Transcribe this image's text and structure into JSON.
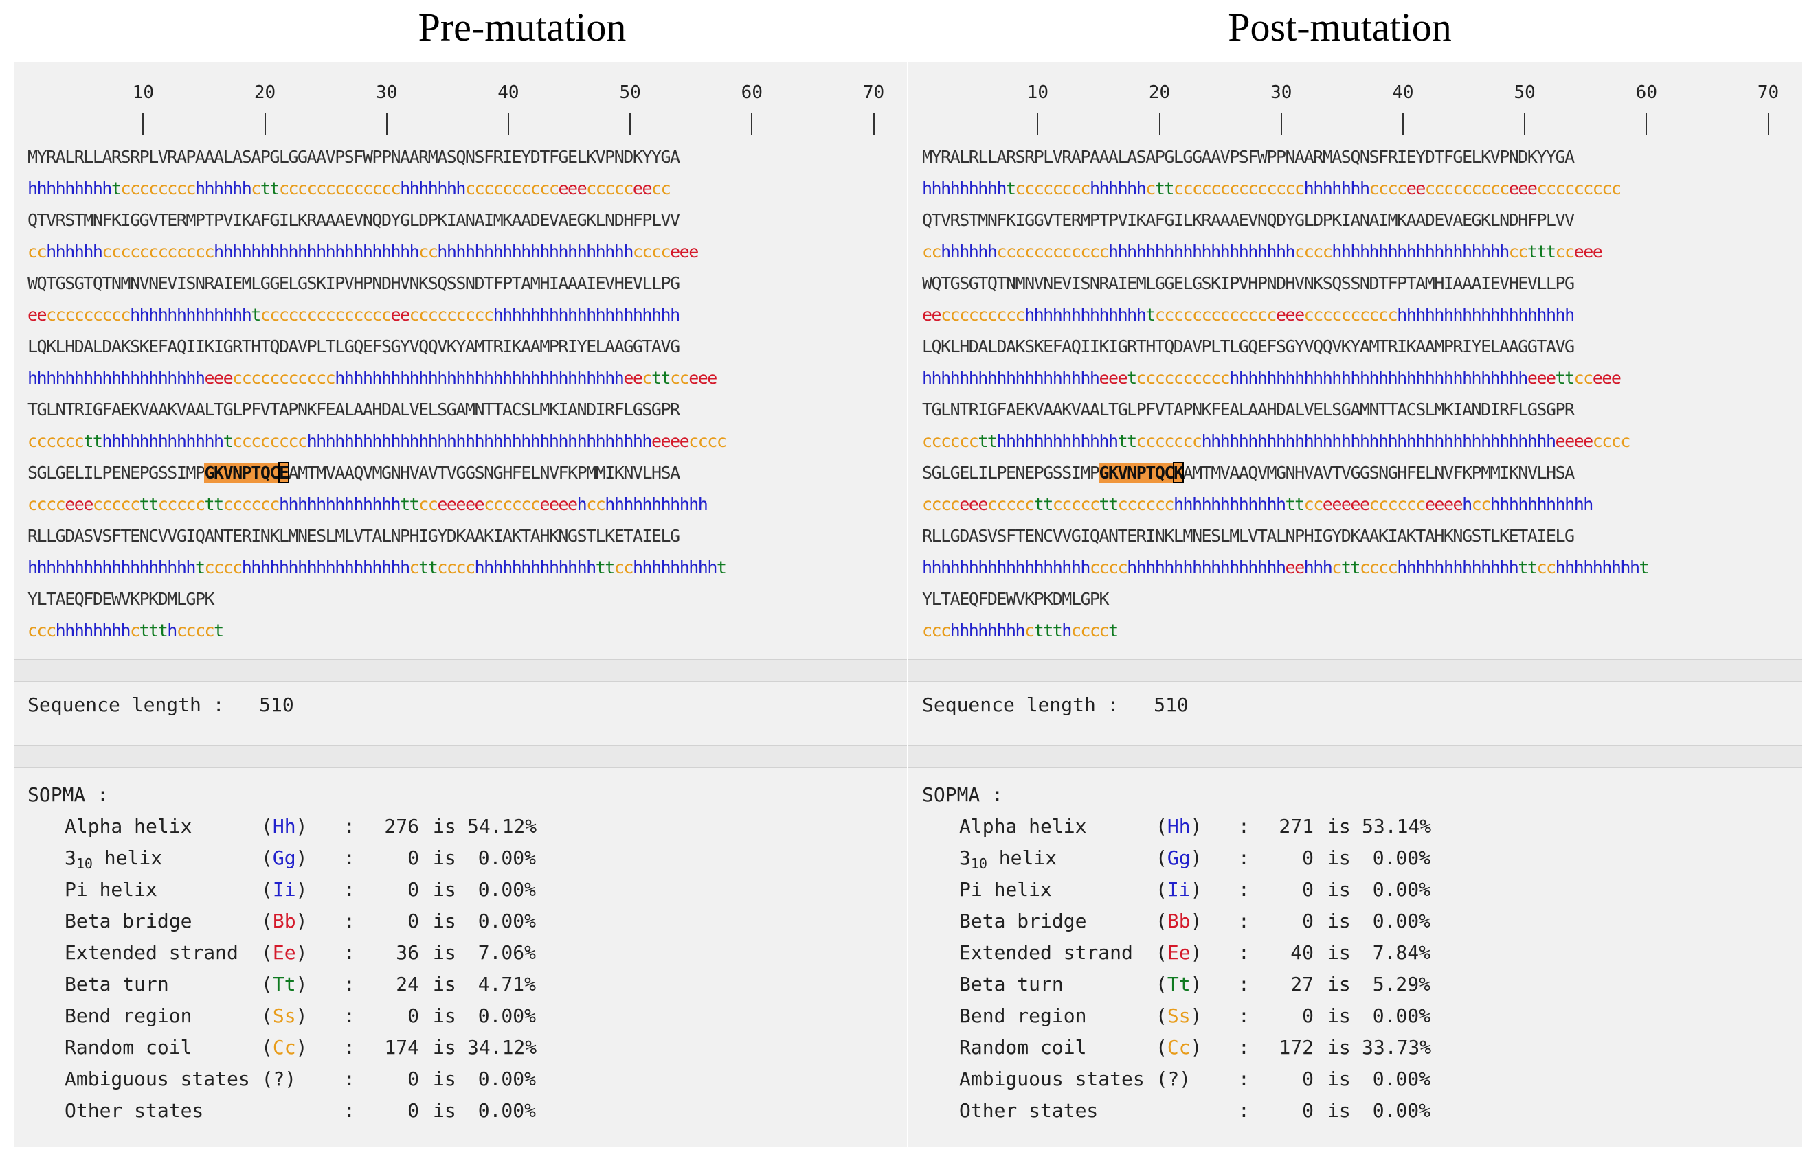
{
  "titles": {
    "pre": "Pre-mutation",
    "post": "Post-mutation"
  },
  "ruler_labels": [
    "10",
    "20",
    "30",
    "40",
    "50",
    "60",
    "70"
  ],
  "pre": {
    "lines": [
      {
        "aa": "MYRALRLLARSRPLVRAPAAALASAPGLGGAAVPSFWPPNAARMASQNSFRIEYDTFGELKVPNDKYYGA",
        "ss": "hhhhhhhhhtcccccccchhhhhhcttccccccccccccchhhhhhhcccccccccceeeccccceecc"
      },
      {
        "aa": "QTVRSTMNFKIGGVTERMPTPVIKAFGILKRAAAEVNQDYGLDPKIANAIMKAADEVAEGKLNDHFPLVV",
        "ss": "cchhhhhhcccccccccccchhhhhhhhhhhhhhhhhhhhhhcchhhhhhhhhhhhhhhhhhhhhcccceee"
      },
      {
        "aa": "WQTGSGTQTNMNVNEVISNRAIEMLGGELGSKIPVHPNDHVNKSQSSNDTFPTAMHIAAAIEVHEVLLPG",
        "ss": "eeccccccccchhhhhhhhhhhhhtcccccccccccccceeccccccccchhhhhhhhhhhhhhhhhhhh"
      },
      {
        "aa": "LQKLHDALDAKSKEFAQIIKIGRTHTQDAVPLTLGQEFSGYVQQVKYAMTRIKAAMPRIYELAAGGTAVG",
        "ss": "hhhhhhhhhhhhhhhhhhheeeccccccccccchhhhhhhhhhhhhhhhhhhhhhhhhhhhhhheecttcceee"
      },
      {
        "aa": "TGLNTRIGFAEKVAAKVAALTGLPFVTAPNKFEALAAHDALVELSGAMNTTACSLMKIANDIRFLGSGPR",
        "ss": "cccccctthhhhhhhhhhhhhtcccccccchhhhhhhhhhhhhhhhhhhhhhhhhhhhhhhhhhhhheeeecccc"
      },
      {
        "aa": "SGLGELILPENEPGSSIMPGKVNPTQCEAMTMVAAQVMGNHVAVTVGGSNGHFELNVFKPMMIKNVLHSA",
        "ss": "cccceeecccccttcccccttcccccchhhhhhhhhhhhhttcceeeeecccccceeeehcchhhhhhhhhhh",
        "hl_start": 19,
        "hl_end": 28,
        "box": 27
      },
      {
        "aa": "RLLGDASVSFTENCVVGIQANTERINKLMNESLMLVTALNPHIGYDKAAKIAKTAHKNGSTLKETAIELG",
        "ss": "hhhhhhhhhhhhhhhhhhtcccchhhhhhhhhhhhhhhhhhcttcccchhhhhhhhhhhhhttcchhhhhhhhht"
      },
      {
        "aa": "YLTAEQFDEWVKPKDMLGPK",
        "ss": "ccchhhhhhhhcttthcccct"
      }
    ],
    "seq_len_label": "Sequence length :",
    "seq_len_value": "510",
    "sopma_label": "SOPMA :",
    "rows": [
      {
        "name": "Alpha helix",
        "code": "Hh",
        "count": "276",
        "pct": "54.12%"
      },
      {
        "name": "3",
        "sub": "10",
        "name2": " helix",
        "code": "Gg",
        "count": "0",
        "pct": "0.00%"
      },
      {
        "name": "Pi helix",
        "code": "Ii",
        "count": "0",
        "pct": "0.00%"
      },
      {
        "name": "Beta bridge",
        "code": "Bb",
        "count": "0",
        "pct": "0.00%"
      },
      {
        "name": "Extended strand",
        "code": "Ee",
        "count": "36",
        "pct": "7.06%"
      },
      {
        "name": "Beta turn",
        "code": "Tt",
        "count": "24",
        "pct": "4.71%"
      },
      {
        "name": "Bend region",
        "code": "Ss",
        "count": "0",
        "pct": "0.00%"
      },
      {
        "name": "Random coil",
        "code": "Cc",
        "count": "174",
        "pct": "34.12%"
      },
      {
        "name": "Ambiguous states (?)",
        "code": "",
        "count": "0",
        "pct": "0.00%"
      },
      {
        "name": "Other states",
        "code": "",
        "count": "0",
        "pct": "0.00%"
      }
    ]
  },
  "post": {
    "lines": [
      {
        "aa": "MYRALRLLARSRPLVRAPAAALASAPGLGGAAVPSFWPPNAARMASQNSFRIEYDTFGELKVPNDKYYGA",
        "ss": "hhhhhhhhhtcccccccchhhhhhcttcccccccccccccchhhhhhhcccceeccccccccceeeccccccccc"
      },
      {
        "aa": "QTVRSTMNFKIGGVTERMPTPVIKAFGILKRAAAEVNQDYGLDPKIANAIMKAADEVAEGKLNDHFPLVV",
        "ss": "cchhhhhhcccccccccccchhhhhhhhhhhhhhhhhhhhcccchhhhhhhhhhhhhhhhhhhcctttcceee"
      },
      {
        "aa": "WQTGSGTQTNMNVNEVISNRAIEMLGGELGSKIPVHPNDHVNKSQSSNDTFPTAMHIAAAIEVHEVLLPG",
        "ss": "eeccccccccchhhhhhhhhhhhhtccccccccccccceeecccccccccchhhhhhhhhhhhhhhhhhh"
      },
      {
        "aa": "LQKLHDALDAKSKEFAQIIKIGRTHTQDAVPLTLGQEFSGYVQQVKYAMTRIKAAMPRIYELAAGGTAVG",
        "ss": "hhhhhhhhhhhhhhhhhhheeetcccccccccchhhhhhhhhhhhhhhhhhhhhhhhhhhhhhhheeettcceee"
      },
      {
        "aa": "TGLNTRIGFAEKVAAKVAALTGLPFVTAPNKFEALAAHDALVELSGAMNTTACSLMKIANDIRFLGSGPR",
        "ss": "cccccctthhhhhhhhhhhhhttccccccchhhhhhhhhhhhhhhhhhhhhhhhhhhhhhhhhhhhhheeeecccc"
      },
      {
        "aa": "SGLGELILPENEPGSSIMPGKVNPTQCKAMTMVAAQVMGNHVAVTVGGSNGHFELNVFKPMMIKNVLHSA",
        "ss": "cccceeecccccttcccccttcccccchhhhhhhhhhhhttcceeeeecccccceeeehcchhhhhhhhhhh",
        "hl_start": 19,
        "hl_end": 28,
        "box": 27
      },
      {
        "aa": "RLLGDASVSFTENCVVGIQANTERINKLMNESLMLVTALNPHIGYDKAAKIAKTAHKNGSTLKETAIELG",
        "ss": "hhhhhhhhhhhhhhhhhhcccchhhhhhhhhhhhhhhhheehhhcttcccchhhhhhhhhhhhhttcchhhhhhhhht"
      },
      {
        "aa": "YLTAEQFDEWVKPKDMLGPK",
        "ss": "ccchhhhhhhhcttthcccct"
      }
    ],
    "seq_len_label": "Sequence length :",
    "seq_len_value": "510",
    "sopma_label": "SOPMA :",
    "rows": [
      {
        "name": "Alpha helix",
        "code": "Hh",
        "count": "271",
        "pct": "53.14%"
      },
      {
        "name": "3",
        "sub": "10",
        "name2": " helix",
        "code": "Gg",
        "count": "0",
        "pct": "0.00%"
      },
      {
        "name": "Pi helix",
        "code": "Ii",
        "count": "0",
        "pct": "0.00%"
      },
      {
        "name": "Beta bridge",
        "code": "Bb",
        "count": "0",
        "pct": "0.00%"
      },
      {
        "name": "Extended strand",
        "code": "Ee",
        "count": "40",
        "pct": "7.84%"
      },
      {
        "name": "Beta turn",
        "code": "Tt",
        "count": "27",
        "pct": "5.29%"
      },
      {
        "name": "Bend region",
        "code": "Ss",
        "count": "0",
        "pct": "0.00%"
      },
      {
        "name": "Random coil",
        "code": "Cc",
        "count": "172",
        "pct": "33.73%"
      },
      {
        "name": "Ambiguous states (?)",
        "code": "",
        "count": "0",
        "pct": "0.00%"
      },
      {
        "name": "Other states",
        "code": "",
        "count": "0",
        "pct": "0.00%"
      }
    ]
  },
  "colors": {
    "helix": "#2121cc",
    "coil": "#e89c1a",
    "strand": "#d4192a",
    "turn": "#0f7a20",
    "highlight": "#f0963c"
  },
  "is_word": "is"
}
